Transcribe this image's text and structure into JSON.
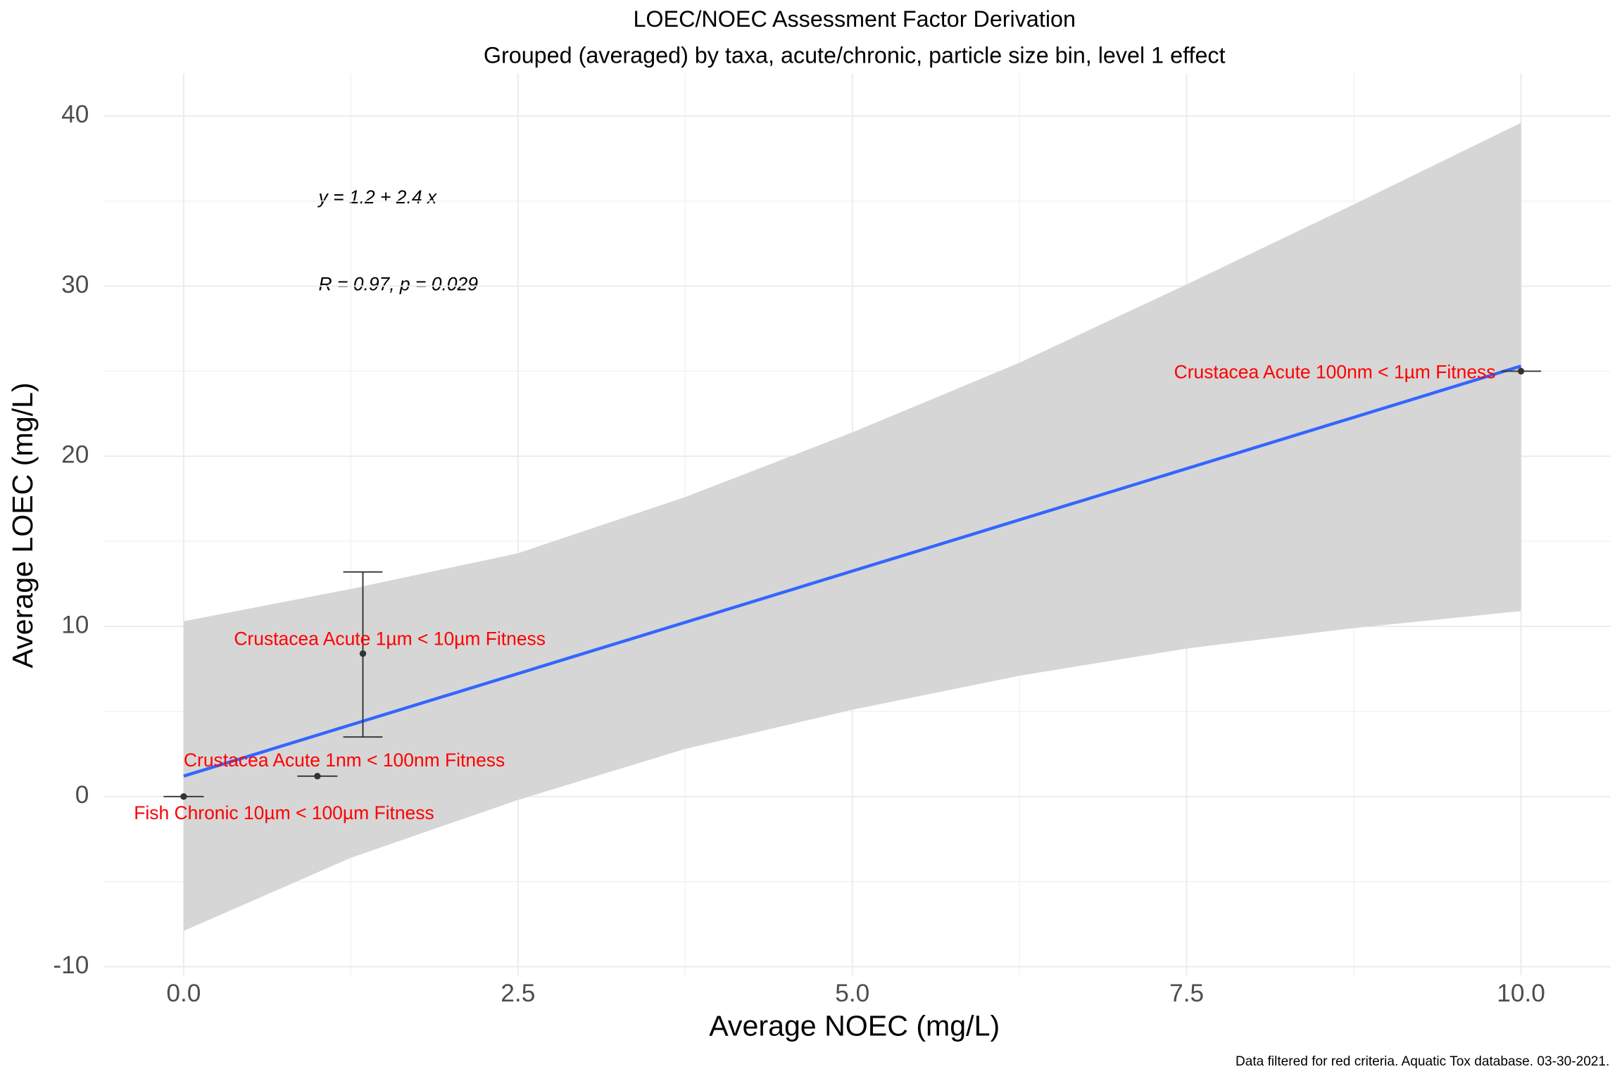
{
  "chart_data": {
    "type": "scatter",
    "title": "LOEC/NOEC Assessment Factor Derivation",
    "subtitle": "Grouped (averaged) by taxa, acute/chronic, particle size bin, level 1 effect",
    "x_label": "Average NOEC (mg/L)",
    "y_label": "Average LOEC (mg/L)",
    "caption": "Data filtered for red criteria. Aquatic Tox database. 03-30-2021.",
    "annotations": [
      "y = 1.2 + 2.4 x",
      "R = 0.97, p = 0.029"
    ],
    "xlim": [
      -0.6,
      10.67
    ],
    "ylim": [
      -10.5,
      42.5
    ],
    "xticks": [
      {
        "value": 0,
        "label": "0.0"
      },
      2.5,
      {
        "value": 5,
        "label": "5.0"
      },
      7.5,
      {
        "value": 10,
        "label": "10.0"
      }
    ],
    "yticks": [
      -10,
      0,
      10,
      20,
      30,
      40
    ],
    "x_minor_ticks": [
      1.25,
      3.75,
      6.25,
      8.75
    ],
    "y_minor_ticks": [
      -5,
      5,
      15,
      25,
      35
    ],
    "grid": true,
    "point_color": "#333333",
    "label_color": "#ff0000",
    "points": {
      "labels": [
        "Fish Chronic 10µm < 100µm Fitness",
        "Crustacea Acute 1nm < 100nm Fitness",
        "Crustacea Acute 1µm < 10µm Fitness",
        "Crustacea Acute 100nm < 1µm Fitness"
      ],
      "x": [
        0,
        1.0,
        1.34,
        10
      ],
      "y": [
        0,
        1.2,
        8.4,
        25.0
      ],
      "xmin": [
        -0.15,
        0.85,
        null,
        9.85
      ],
      "xmax": [
        0.15,
        1.15,
        null,
        10.15
      ],
      "ymin": [
        null,
        null,
        3.5,
        null
      ],
      "ymax": [
        null,
        null,
        13.2,
        null
      ]
    },
    "fit": {
      "color": "#3366ff",
      "x": [
        0,
        10
      ],
      "y": [
        1.2,
        25.3
      ]
    },
    "band": {
      "color": "#d6d6d6",
      "x": [
        0,
        1.25,
        2.5,
        3.75,
        5,
        6.25,
        7.5,
        8.75,
        10
      ],
      "upper": [
        10.3,
        12.2,
        14.3,
        17.6,
        21.4,
        25.5,
        30.1,
        34.8,
        39.6
      ],
      "lower": [
        -7.9,
        -3.6,
        -0.2,
        2.8,
        5.1,
        7.1,
        8.7,
        9.9,
        10.9
      ]
    }
  }
}
